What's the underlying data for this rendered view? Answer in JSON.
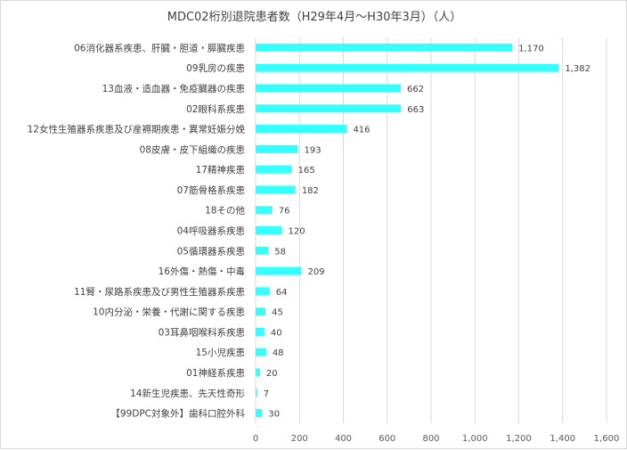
{
  "chart_data": {
    "type": "bar",
    "orientation": "horizontal",
    "title": "MDC02桁別退院患者数（H29年4月～H30年3月）（人）",
    "categories": [
      "06消化器系疾患、肝臓・胆道・膵臓疾患",
      "09乳房の疾患",
      "13血液・造血器・免疫臓器の疾患",
      "02眼科系疾患",
      "12女性生殖器系疾患及び産褥期疾患・異常妊娠分娩",
      "08皮膚・皮下組織の疾患",
      "17精神疾患",
      "07筋骨格系疾患",
      "18その他",
      "04呼吸器系疾患",
      "05循環器系疾患",
      "16外傷・熱傷・中毒",
      "11腎・尿路系疾患及び男性生殖器系疾患",
      "10内分泌・栄養・代謝に関する疾患",
      "03耳鼻咽喉科系疾患",
      "15小児疾患",
      "01神経系疾患",
      "14新生児疾患、先天性奇形",
      "【99DPC対象外】歯科口腔外科"
    ],
    "values": [
      1170,
      1382,
      662,
      663,
      416,
      193,
      165,
      182,
      76,
      120,
      58,
      209,
      64,
      45,
      40,
      48,
      20,
      7,
      30
    ],
    "value_labels": [
      "1,170",
      "1,382",
      "662",
      "663",
      "416",
      "193",
      "165",
      "182",
      "76",
      "120",
      "58",
      "209",
      "64",
      "45",
      "40",
      "48",
      "20",
      "7",
      "30"
    ],
    "xlim": [
      0,
      1600
    ],
    "x_ticks": [
      0,
      200,
      400,
      600,
      800,
      1000,
      1200,
      1400,
      1600
    ],
    "x_tick_labels": [
      "0",
      "200",
      "400",
      "600",
      "800",
      "1,000",
      "1,200",
      "1,400",
      "1,600"
    ],
    "grid": true,
    "legend": "none",
    "bar_color": "#33ffff",
    "grid_color": "#d9d9d9",
    "text_color": "#404040"
  }
}
